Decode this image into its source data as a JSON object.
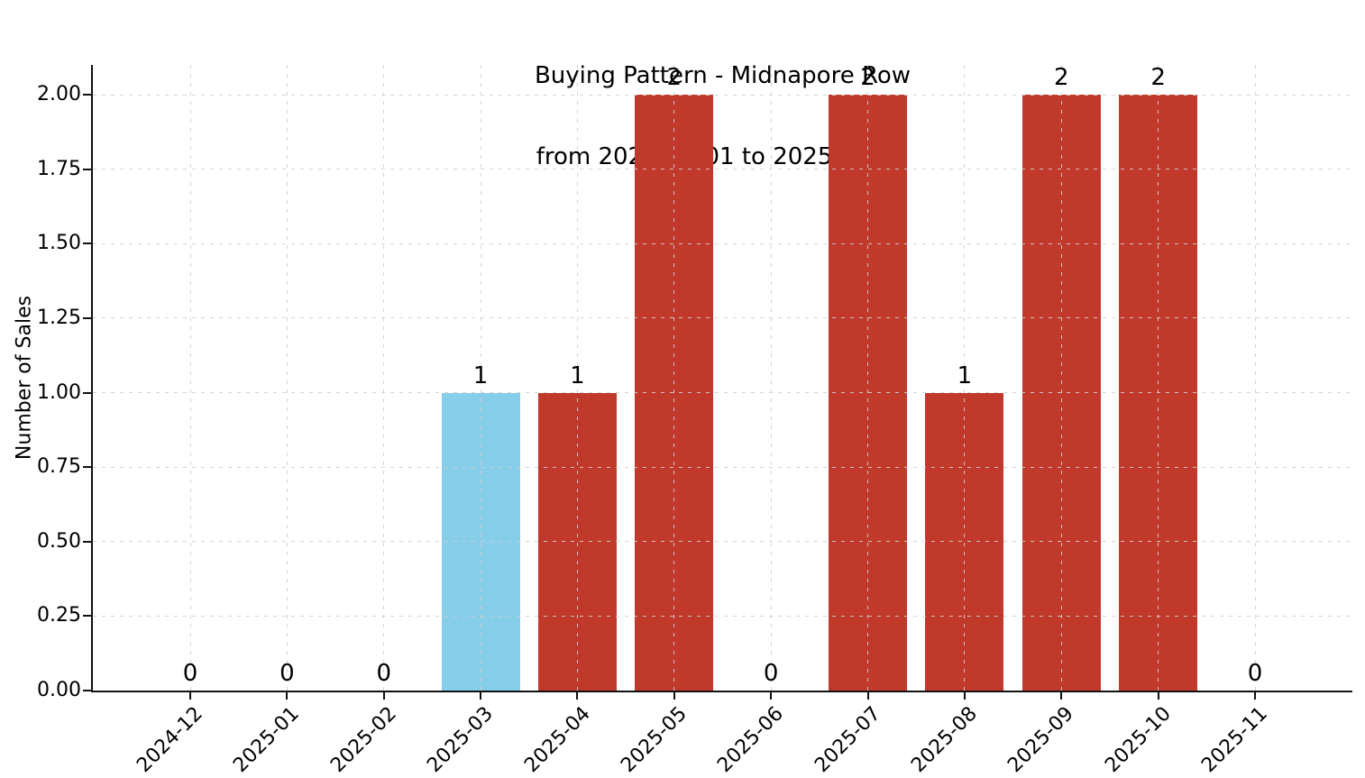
{
  "chart_data": {
    "type": "bar",
    "title": "Buying Pattern - Midnapore Row",
    "subtitle": "from 2024-12-01 to 2025-11-15",
    "ylabel": "Number of Sales",
    "xlabel": "",
    "categories": [
      "2024-12",
      "2025-01",
      "2025-02",
      "2025-03",
      "2025-04",
      "2025-05",
      "2025-06",
      "2025-07",
      "2025-08",
      "2025-09",
      "2025-10",
      "2025-11"
    ],
    "values": [
      0,
      0,
      0,
      1,
      1,
      2,
      0,
      2,
      1,
      2,
      2,
      0
    ],
    "value_labels": [
      "0",
      "0",
      "0",
      "1",
      "1",
      "2",
      "0",
      "2",
      "1",
      "2",
      "2",
      "0"
    ],
    "default_bar_color": "#c0392b",
    "highlighted_category": "2025-03",
    "highlight_color": "#87ceeb",
    "bar_colors": [
      "#c0392b",
      "#c0392b",
      "#c0392b",
      "#87ceeb",
      "#c0392b",
      "#c0392b",
      "#c0392b",
      "#c0392b",
      "#c0392b",
      "#c0392b",
      "#c0392b",
      "#c0392b"
    ],
    "ylim": [
      0,
      2.1
    ],
    "ytick_labels": [
      "0.00",
      "0.25",
      "0.50",
      "0.75",
      "1.00",
      "1.25",
      "1.50",
      "1.75",
      "2.00"
    ],
    "x_tick_rotation_deg": 45,
    "grid": {
      "visible": true,
      "style": "dashed",
      "color": "#d0d0d0",
      "x": true,
      "y": true
    },
    "legend": {
      "visible": false
    },
    "spine_color": "#111111",
    "background_color": "#ffffff"
  }
}
